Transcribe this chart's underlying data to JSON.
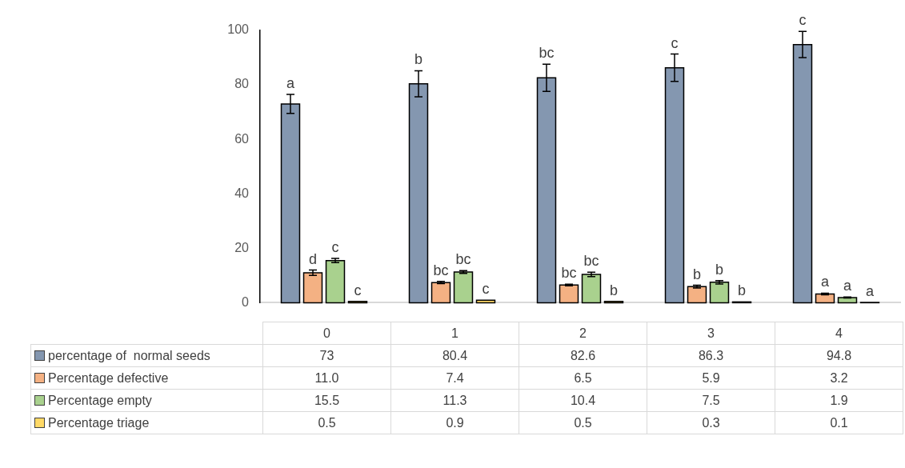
{
  "chart_data": {
    "type": "bar",
    "categories": [
      "0",
      "1",
      "2",
      "3",
      "4"
    ],
    "series": [
      {
        "name": "percentage of  normal seeds",
        "color": "#8497b0",
        "values": [
          73,
          80.4,
          82.6,
          86.3,
          94.8
        ],
        "errors": [
          3.5,
          4.8,
          5,
          5,
          4.8
        ],
        "value_labels": [
          "73",
          "80.4",
          "82.6",
          "86.3",
          "94.8"
        ]
      },
      {
        "name": "Percentage defective",
        "color": "#f4b183",
        "values": [
          11.0,
          7.4,
          6.5,
          5.9,
          3.2
        ],
        "errors": [
          1,
          0.4,
          0.3,
          0.5,
          0.3
        ],
        "value_labels": [
          "11.0",
          "7.4",
          "6.5",
          "5.9",
          "3.2"
        ]
      },
      {
        "name": "Percentage empty",
        "color": "#a9d18e",
        "values": [
          15.5,
          11.3,
          10.4,
          7.5,
          1.9
        ],
        "errors": [
          0.8,
          0.5,
          0.8,
          0.6,
          0.2
        ],
        "value_labels": [
          "15.5",
          "11.3",
          "10.4",
          "7.5",
          "1.9"
        ]
      },
      {
        "name": "Percentage triage",
        "color": "#ffd966",
        "values": [
          0.5,
          0.9,
          0.5,
          0.3,
          0.1
        ],
        "value_labels": [
          "0.5",
          "0.9",
          "0.5",
          "0.3",
          "0.1"
        ]
      }
    ],
    "ylim": [
      0,
      100
    ],
    "yticks": [
      0,
      20,
      40,
      60,
      80,
      100
    ],
    "grid": false,
    "legend": "bottom",
    "annotations": [
      "a",
      "d",
      "c",
      "c",
      "b",
      "bc",
      "bc",
      "c",
      "bc",
      "bc",
      "bc",
      "b",
      "c",
      "b",
      "b",
      "b",
      "c",
      "a",
      "a",
      "a"
    ]
  }
}
